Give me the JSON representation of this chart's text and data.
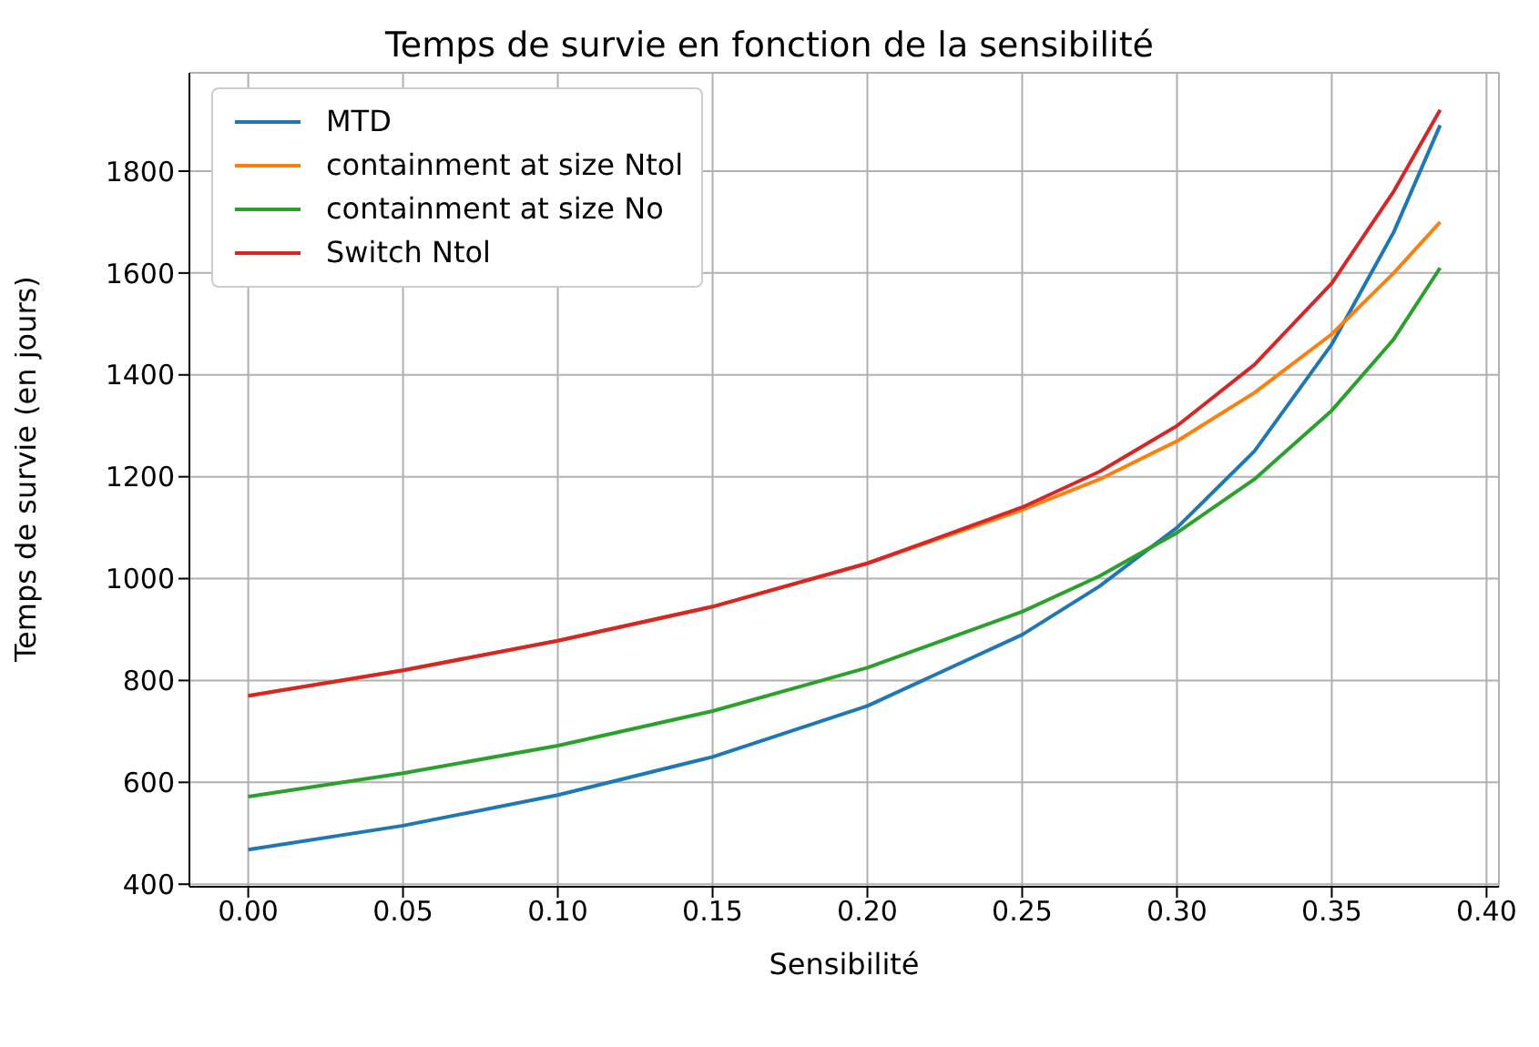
{
  "chart_data": {
    "type": "line",
    "title": "Temps de survie en fonction de la sensibilité",
    "xlabel": "Sensibilité",
    "ylabel": "Temps de survie (en jours)",
    "x": [
      0,
      0.05,
      0.1,
      0.15,
      0.2,
      0.25,
      0.275,
      0.3,
      0.325,
      0.35,
      0.37,
      0.385
    ],
    "series": [
      {
        "name": "MTD",
        "color": "#1f77b4",
        "values": [
          468,
          515,
          575,
          650,
          750,
          890,
          985,
          1100,
          1250,
          1460,
          1680,
          1890
        ]
      },
      {
        "name": "containment at size Ntol",
        "color": "#ff7f0e",
        "values": [
          770,
          820,
          878,
          945,
          1030,
          1135,
          1195,
          1270,
          1365,
          1480,
          1600,
          1700
        ]
      },
      {
        "name": "containment at size No",
        "color": "#2ca02c",
        "values": [
          572,
          618,
          672,
          740,
          825,
          935,
          1005,
          1090,
          1195,
          1330,
          1470,
          1610
        ]
      },
      {
        "name": "Switch Ntol",
        "color": "#d62728",
        "values": [
          770,
          820,
          878,
          945,
          1030,
          1140,
          1210,
          1300,
          1420,
          1580,
          1760,
          1920
        ]
      }
    ],
    "xlim": [
      -0.019,
      0.404
    ],
    "ylim": [
      395,
      1993
    ],
    "xticks": [
      {
        "value": 0,
        "label": "0.00"
      },
      {
        "value": 0.05,
        "label": "0.05"
      },
      {
        "value": 0.1,
        "label": "0.10"
      },
      {
        "value": 0.15,
        "label": "0.15"
      },
      {
        "value": 0.2,
        "label": "0.20"
      },
      {
        "value": 0.25,
        "label": "0.25"
      },
      {
        "value": 0.3,
        "label": "0.30"
      },
      {
        "value": 0.35,
        "label": "0.35"
      },
      {
        "value": 0.4,
        "label": "0.40"
      }
    ],
    "yticks": [
      400,
      600,
      800,
      1000,
      1200,
      1400,
      1600,
      1800
    ],
    "grid": true,
    "legend": "top left",
    "marker": "none",
    "line_style": "solid"
  }
}
